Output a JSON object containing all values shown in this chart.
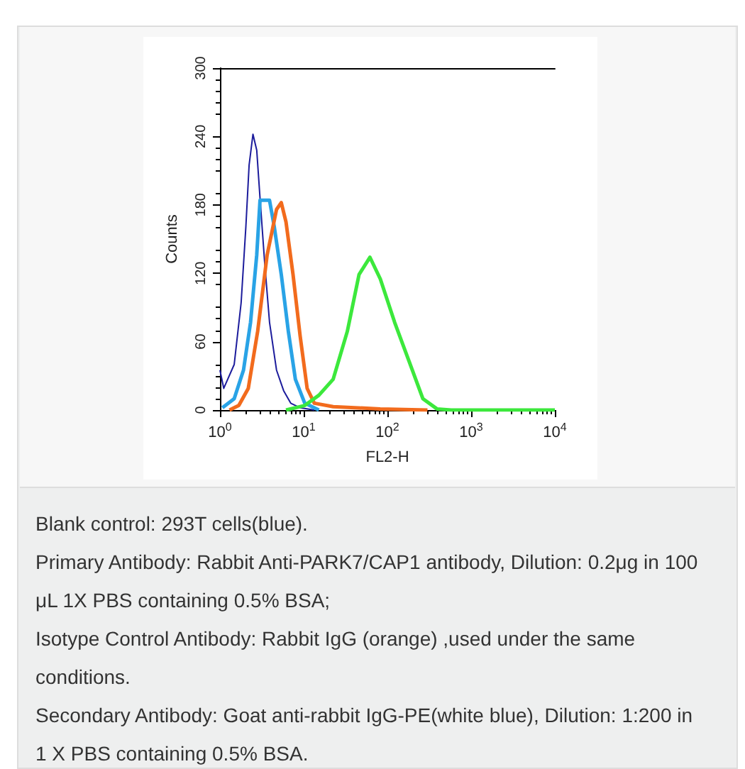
{
  "chart_data": {
    "type": "line",
    "xlabel": "FL2-H",
    "ylabel": "Counts",
    "log": "x",
    "xlim": [
      1,
      10000
    ],
    "ylim": [
      0,
      300
    ],
    "xticks": [
      {
        "value": 1,
        "label": "10$^{0}$"
      },
      {
        "value": 10,
        "label": "10$^{1}$"
      },
      {
        "value": 100,
        "label": "10$^{2}$"
      },
      {
        "value": 1000,
        "label": "10$^{3}$"
      },
      {
        "value": 10000,
        "label": "10$^{4}$"
      }
    ],
    "yticks": [
      0,
      60,
      120,
      180,
      240,
      300
    ],
    "grid": false,
    "marker": "none",
    "line_style": "solid",
    "series": [
      {
        "color": "#1c1c9c",
        "x": [
          1,
          1.11,
          1.48,
          1.79,
          2.04,
          2.23,
          2.48,
          2.75,
          3.01,
          3.43,
          3.91,
          4.74,
          5.76,
          7.0,
          9.1,
          13.4
        ],
        "values": [
          35,
          19,
          40,
          94,
          161,
          215,
          242,
          228,
          186,
          128,
          77,
          35,
          17,
          6,
          2,
          0
        ]
      },
      {
        "color": "#29a3e6",
        "x": [
          1.07,
          1.48,
          1.91,
          2.32,
          2.75,
          3.01,
          3.91,
          4.45,
          5.4,
          6.56,
          7.96,
          10.3,
          15.2
        ],
        "values": [
          2,
          10,
          35,
          77,
          136,
          184,
          184,
          161,
          119,
          69,
          27,
          6,
          0
        ]
      },
      {
        "color": "#f26b1d",
        "x": [
          1.3,
          1.68,
          2.18,
          2.82,
          3.66,
          4.74,
          5.4,
          6.15,
          7.46,
          9.07,
          11,
          13.4,
          22.5,
          82,
          301
        ],
        "values": [
          0,
          4,
          19,
          69,
          136,
          176,
          182,
          165,
          119,
          65,
          19,
          6,
          3,
          1,
          0
        ]
      },
      {
        "color": "#3ce83c",
        "x": [
          6.15,
          10.3,
          15.2,
          22.5,
          33.2,
          45.9,
          61.9,
          82.3,
          122,
          179,
          265,
          391,
          577,
          10000
        ],
        "values": [
          0,
          4,
          13,
          27,
          69,
          119,
          134,
          115,
          77,
          44,
          10,
          1,
          0,
          0
        ]
      }
    ],
    "annotations": [
      "Blank control: 293T cells(blue).",
      "Primary Antibody: Rabbit Anti-PARK7/CAP1 antibody, Dilution: 0.2μg in 100 μL 1X PBS containing 0.5% BSA;",
      "Isotype Control Antibody: Rabbit IgG (orange) ,used under the same conditions.",
      "Secondary Antibody: Goat anti-rabbit IgG-PE(white blue), Dilution: 1:200 in 1 X PBS containing 0.5% BSA."
    ]
  }
}
